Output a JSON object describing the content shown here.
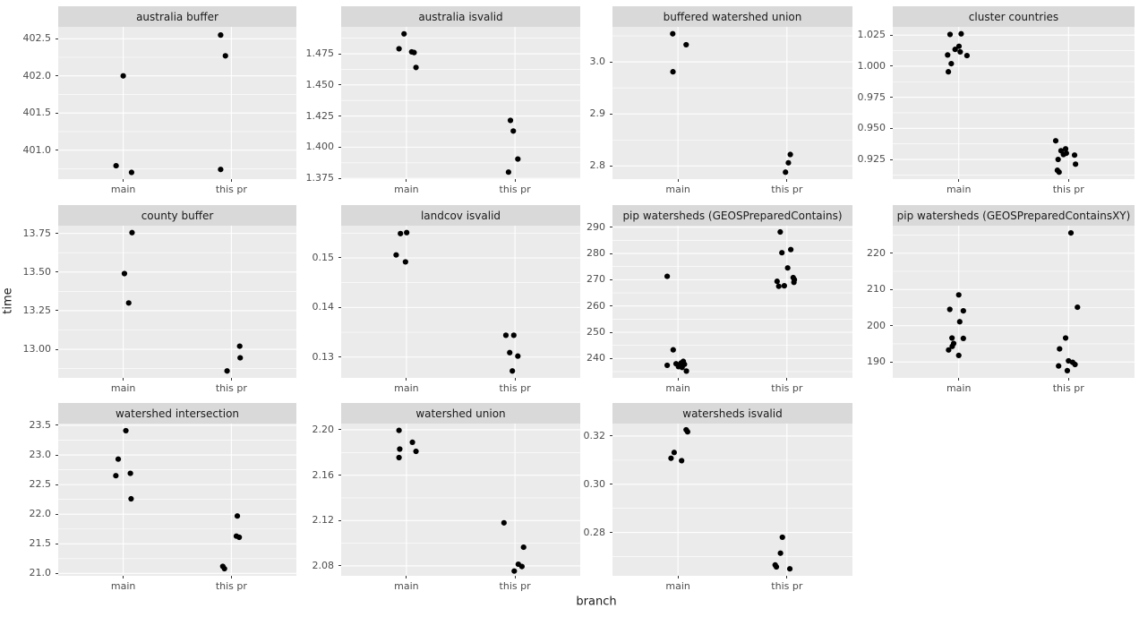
{
  "colors": {
    "page_bg": "#FFFFFF",
    "panel_bg": "#EBEBEB",
    "strip_bg": "#D9D9D9",
    "grid_major": "#FFFFFF",
    "grid_minor": "#FFFFFF",
    "point": "#000000",
    "tick_text": "#4D4D4D",
    "title_text": "#1A1A1A",
    "tick_mark": "#333333"
  },
  "axis": {
    "x_label": "branch",
    "y_label": "time",
    "x_categories": [
      "main",
      "this pr"
    ]
  },
  "chart_data": {
    "type": "scatter",
    "facet_by": "benchmark",
    "x": "branch",
    "y": "time",
    "point_note": "points are [branch, x_jitter_fraction_of_panel_width, time_value]",
    "facets": [
      {
        "title": "australia buffer",
        "ylim": [
          400.61,
          402.66
        ],
        "ytick_labels": [
          "401.0",
          "401.5",
          "402.0",
          "402.5"
        ],
        "ytick_values": [
          401.0,
          401.5,
          402.0,
          402.5
        ],
        "points": [
          [
            "main",
            0.0,
            402.0
          ],
          [
            "main",
            -0.03,
            400.79
          ],
          [
            "main",
            0.035,
            400.7
          ],
          [
            "this pr",
            -0.045,
            402.55
          ],
          [
            "this pr",
            -0.025,
            402.27
          ],
          [
            "this pr",
            -0.045,
            400.74
          ]
        ]
      },
      {
        "title": "australia isvalid",
        "ylim": [
          1.3744,
          1.4966
        ],
        "ytick_labels": [
          "1.375",
          "1.400",
          "1.425",
          "1.450",
          "1.475"
        ],
        "ytick_values": [
          1.375,
          1.4,
          1.425,
          1.45,
          1.475
        ],
        "points": [
          [
            "main",
            -0.01,
            1.491
          ],
          [
            "main",
            -0.031,
            1.479
          ],
          [
            "main",
            0.022,
            1.4765
          ],
          [
            "main",
            0.032,
            1.476
          ],
          [
            "main",
            0.04,
            1.464
          ],
          [
            "this pr",
            -0.019,
            1.4215
          ],
          [
            "this pr",
            -0.007,
            1.413
          ],
          [
            "this pr",
            0.012,
            1.3905
          ],
          [
            "this pr",
            -0.027,
            1.38
          ]
        ]
      },
      {
        "title": "buffered watershed union",
        "ylim": [
          2.7747,
          3.0673
        ],
        "ytick_labels": [
          "2.8",
          "2.9",
          "3.0"
        ],
        "ytick_values": [
          2.8,
          2.9,
          3.0
        ],
        "points": [
          [
            "main",
            -0.022,
            3.054
          ],
          [
            "main",
            0.034,
            3.033
          ],
          [
            "main",
            -0.021,
            2.981
          ],
          [
            "this pr",
            0.014,
            2.822
          ],
          [
            "this pr",
            0.006,
            2.806
          ],
          [
            "this pr",
            -0.006,
            2.788
          ]
        ]
      },
      {
        "title": "cluster countries",
        "ylim": [
          0.9092,
          1.0316
        ],
        "ytick_labels": [
          "0.925",
          "0.950",
          "0.975",
          "1.000",
          "1.025"
        ],
        "ytick_values": [
          0.925,
          0.95,
          0.975,
          1.0,
          1.025
        ],
        "points": [
          [
            "main",
            -0.036,
            1.0255
          ],
          [
            "main",
            0.01,
            1.026
          ],
          [
            "main",
            0.001,
            1.016
          ],
          [
            "main",
            -0.015,
            1.0135
          ],
          [
            "main",
            0.006,
            1.0115
          ],
          [
            "main",
            -0.046,
            1.009
          ],
          [
            "main",
            0.034,
            1.0085
          ],
          [
            "main",
            -0.031,
            1.002
          ],
          [
            "main",
            -0.043,
            0.9955
          ],
          [
            "this pr",
            -0.053,
            0.94
          ],
          [
            "this pr",
            -0.012,
            0.9335
          ],
          [
            "this pr",
            -0.031,
            0.932
          ],
          [
            "this pr",
            -0.009,
            0.93
          ],
          [
            "this pr",
            -0.021,
            0.929
          ],
          [
            "this pr",
            0.025,
            0.9285
          ],
          [
            "this pr",
            -0.043,
            0.925
          ],
          [
            "this pr",
            0.029,
            0.9212
          ],
          [
            "this pr",
            -0.046,
            0.9163
          ],
          [
            "this pr",
            -0.039,
            0.9148
          ]
        ]
      },
      {
        "title": "county buffer",
        "ylim": [
          12.815,
          13.8
        ],
        "ytick_labels": [
          "13.00",
          "13.25",
          "13.50",
          "13.75"
        ],
        "ytick_values": [
          13.0,
          13.25,
          13.5,
          13.75
        ],
        "points": [
          [
            "main",
            0.037,
            13.755
          ],
          [
            "main",
            0.005,
            13.49
          ],
          [
            "main",
            0.023,
            13.3
          ],
          [
            "this pr",
            0.035,
            13.02
          ],
          [
            "this pr",
            0.037,
            12.945
          ],
          [
            "this pr",
            -0.018,
            12.86
          ]
        ]
      },
      {
        "title": "landcov isvalid",
        "ylim": [
          0.1258,
          0.1565
        ],
        "ytick_labels": [
          "0.13",
          "0.14",
          "0.15"
        ],
        "ytick_values": [
          0.13,
          0.14,
          0.15
        ],
        "points": [
          [
            "main",
            -0.025,
            0.1549
          ],
          [
            "main",
            0.001,
            0.1551
          ],
          [
            "main",
            -0.043,
            0.1506
          ],
          [
            "main",
            -0.004,
            0.1492
          ],
          [
            "this pr",
            -0.038,
            0.1344
          ],
          [
            "this pr",
            -0.005,
            0.1344
          ],
          [
            "this pr",
            -0.022,
            0.1309
          ],
          [
            "this pr",
            0.012,
            0.1302
          ],
          [
            "this pr",
            -0.011,
            0.1272
          ]
        ]
      },
      {
        "title": "pip watersheds (GEOSPreparedContains)",
        "ylim": [
          232.6,
          290.6
        ],
        "ytick_labels": [
          "240",
          "250",
          "260",
          "270",
          "280",
          "290"
        ],
        "ytick_values": [
          240,
          250,
          260,
          270,
          280,
          290
        ],
        "points": [
          [
            "main",
            -0.045,
            271.3
          ],
          [
            "main",
            -0.02,
            243.3
          ],
          [
            "main",
            0.022,
            238.9
          ],
          [
            "main",
            0.013,
            238.3
          ],
          [
            "main",
            -0.008,
            238.0
          ],
          [
            "main",
            0.027,
            237.8
          ],
          [
            "main",
            -0.045,
            237.4
          ],
          [
            "main",
            0.002,
            236.9
          ],
          [
            "main",
            0.017,
            236.6
          ],
          [
            "main",
            0.035,
            235.2
          ],
          [
            "this pr",
            -0.028,
            288.2
          ],
          [
            "this pr",
            0.016,
            281.5
          ],
          [
            "this pr",
            -0.021,
            280.3
          ],
          [
            "this pr",
            0.003,
            274.5
          ],
          [
            "this pr",
            0.026,
            270.8
          ],
          [
            "this pr",
            0.031,
            270.0
          ],
          [
            "this pr",
            -0.041,
            269.4
          ],
          [
            "this pr",
            0.029,
            269.0
          ],
          [
            "this pr",
            -0.011,
            267.7
          ],
          [
            "this pr",
            -0.034,
            267.5
          ]
        ]
      },
      {
        "title": "pip watersheds (GEOSPreparedContainsXY)",
        "ylim": [
          185.6,
          227.6
        ],
        "ytick_labels": [
          "190",
          "200",
          "210",
          "220"
        ],
        "ytick_values": [
          190,
          200,
          210,
          220
        ],
        "points": [
          [
            "main",
            0.0,
            208.5
          ],
          [
            "main",
            -0.037,
            204.5
          ],
          [
            "main",
            0.019,
            204.1
          ],
          [
            "main",
            0.004,
            201.1
          ],
          [
            "main",
            -0.028,
            196.6
          ],
          [
            "main",
            0.019,
            196.5
          ],
          [
            "main",
            -0.021,
            195.1
          ],
          [
            "main",
            -0.027,
            194.3
          ],
          [
            "main",
            -0.042,
            193.3
          ],
          [
            "main",
            0.0,
            191.8
          ],
          [
            "this pr",
            0.01,
            225.6
          ],
          [
            "this pr",
            0.037,
            205.1
          ],
          [
            "this pr",
            -0.012,
            196.6
          ],
          [
            "this pr",
            -0.037,
            193.6
          ],
          [
            "this pr",
            0.0,
            190.3
          ],
          [
            "this pr",
            0.017,
            189.9
          ],
          [
            "this pr",
            0.027,
            189.3
          ],
          [
            "this pr",
            -0.041,
            188.9
          ],
          [
            "this pr",
            -0.005,
            187.6
          ]
        ]
      },
      {
        "title": "watershed intersection",
        "ylim": [
          20.96,
          23.53
        ],
        "ytick_labels": [
          "21.0",
          "21.5",
          "22.0",
          "22.5",
          "23.0",
          "23.5"
        ],
        "ytick_values": [
          21.0,
          21.5,
          22.0,
          22.5,
          23.0,
          23.5
        ],
        "points": [
          [
            "main",
            0.011,
            23.41
          ],
          [
            "main",
            -0.021,
            22.93
          ],
          [
            "main",
            0.03,
            22.69
          ],
          [
            "main",
            -0.031,
            22.65
          ],
          [
            "main",
            0.033,
            22.26
          ],
          [
            "this pr",
            0.025,
            21.97
          ],
          [
            "this pr",
            0.021,
            21.63
          ],
          [
            "this pr",
            0.033,
            21.61
          ],
          [
            "this pr",
            -0.036,
            21.12
          ],
          [
            "this pr",
            -0.029,
            21.08
          ]
        ]
      },
      {
        "title": "watershed union",
        "ylim": [
          2.0713,
          2.2055
        ],
        "ytick_labels": [
          "2.08",
          "2.12",
          "2.16",
          "2.20"
        ],
        "ytick_values": [
          2.08,
          2.12,
          2.16,
          2.2
        ],
        "points": [
          [
            "main",
            -0.031,
            2.1995
          ],
          [
            "main",
            0.025,
            2.189
          ],
          [
            "main",
            -0.028,
            2.183
          ],
          [
            "main",
            0.04,
            2.181
          ],
          [
            "main",
            -0.031,
            2.1755
          ],
          [
            "this pr",
            -0.046,
            2.118
          ],
          [
            "this pr",
            0.036,
            2.0965
          ],
          [
            "this pr",
            0.014,
            2.0815
          ],
          [
            "this pr",
            0.029,
            2.0795
          ],
          [
            "this pr",
            -0.003,
            2.0755
          ]
        ]
      },
      {
        "title": "watersheds isvalid",
        "ylim": [
          0.262,
          0.3252
        ],
        "ytick_labels": [
          "0.28",
          "0.30",
          "0.32"
        ],
        "ytick_values": [
          0.28,
          0.3,
          0.32
        ],
        "points": [
          [
            "main",
            0.034,
            0.3226
          ],
          [
            "main",
            0.04,
            0.3218
          ],
          [
            "main",
            -0.016,
            0.3132
          ],
          [
            "main",
            -0.029,
            0.3108
          ],
          [
            "main",
            0.015,
            0.3098
          ],
          [
            "this pr",
            -0.019,
            0.278
          ],
          [
            "this pr",
            -0.027,
            0.2714
          ],
          [
            "this pr",
            -0.049,
            0.2665
          ],
          [
            "this pr",
            -0.044,
            0.2657
          ],
          [
            "this pr",
            0.012,
            0.2649
          ]
        ]
      }
    ]
  }
}
